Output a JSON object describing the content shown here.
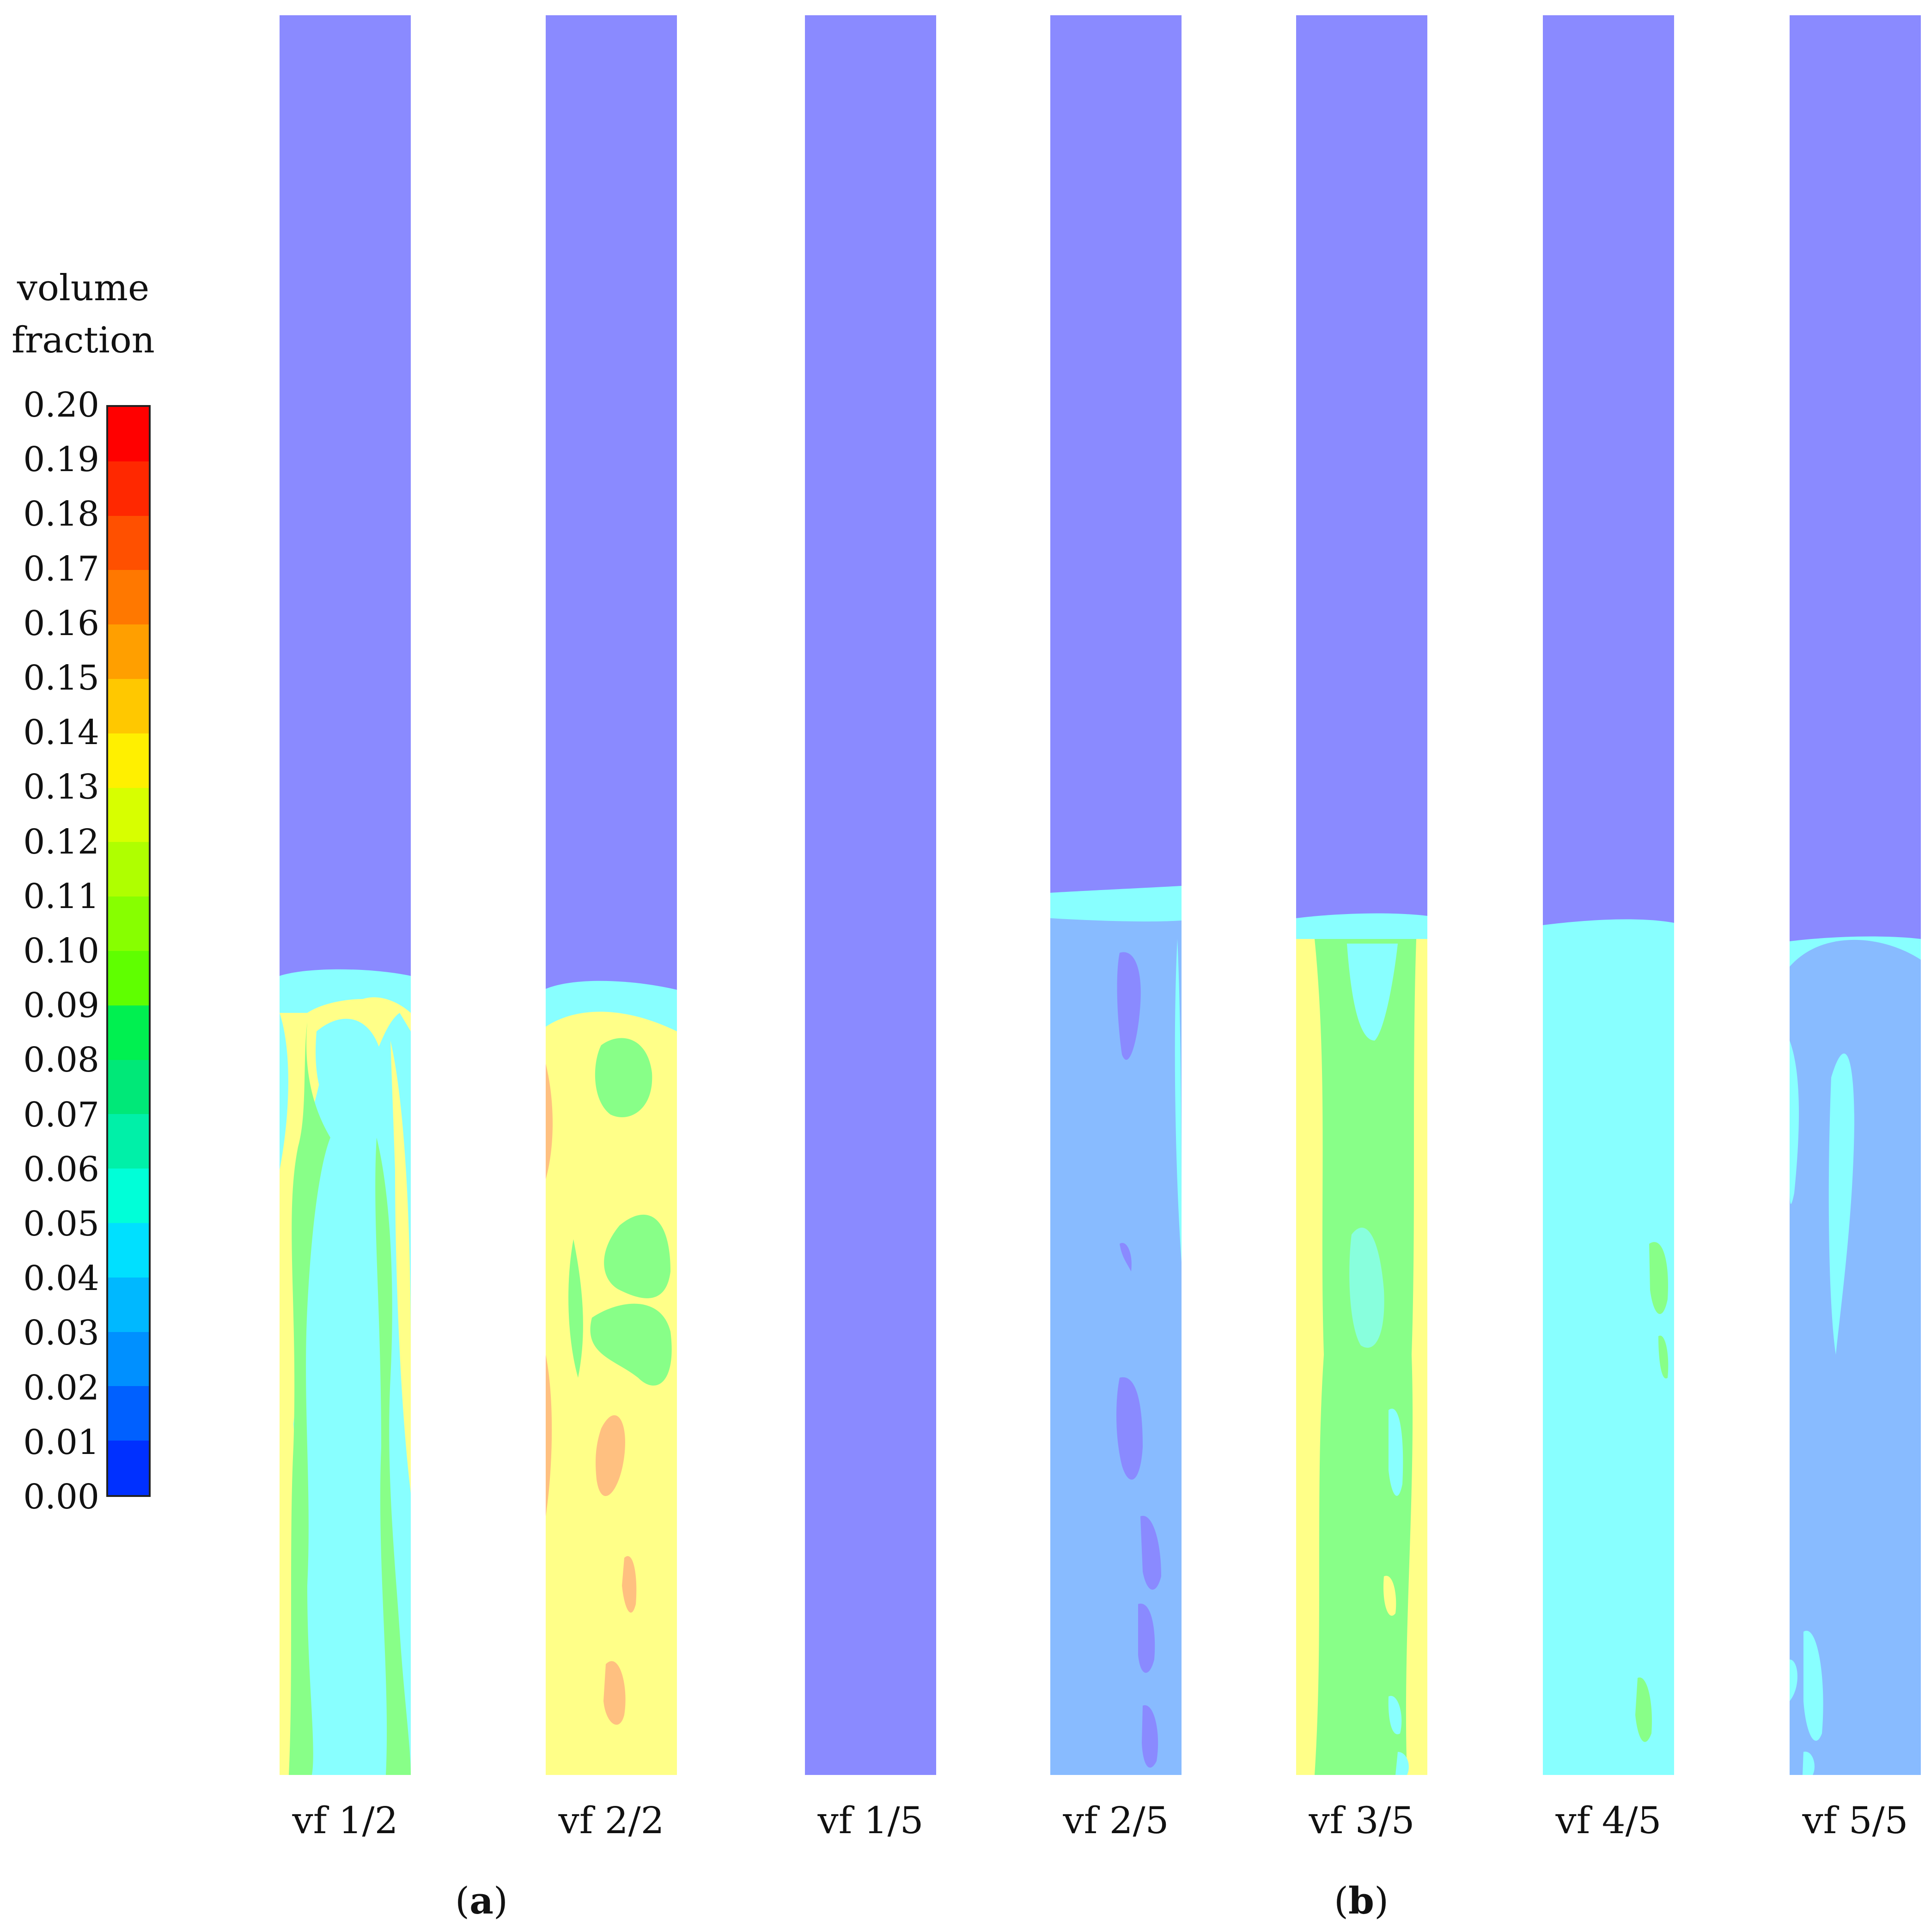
{
  "colorbar": {
    "title_line1": "volume",
    "title_line2": "fraction",
    "ticks": [
      "0.20",
      "0.19",
      "0.18",
      "0.17",
      "0.16",
      "0.15",
      "0.14",
      "0.13",
      "0.12",
      "0.11",
      "0.10",
      "0.09",
      "0.08",
      "0.07",
      "0.06",
      "0.05",
      "0.04",
      "0.03",
      "0.02",
      "0.01",
      "0.00"
    ],
    "colors_top_to_bottom": [
      "#ff0000",
      "#ff2800",
      "#ff5000",
      "#ff7800",
      "#ff9f00",
      "#ffc800",
      "#fff000",
      "#d7ff00",
      "#afff00",
      "#87ff00",
      "#5fff00",
      "#00f050",
      "#00e878",
      "#00f0a8",
      "#00ffd8",
      "#00e0ff",
      "#00b8ff",
      "#0090ff",
      "#0060ff",
      "#0030ff"
    ]
  },
  "columns": [
    {
      "label": "vf 1/2"
    },
    {
      "label": "vf 2/2"
    },
    {
      "label": "vf 1/5"
    },
    {
      "label": "vf 2/5"
    },
    {
      "label": "vf 3/5"
    },
    {
      "label": "vf 4/5"
    },
    {
      "label": "vf 5/5"
    }
  ],
  "panels": [
    {
      "open": "(",
      "letter": "a",
      "close": ")"
    },
    {
      "open": "(",
      "letter": "b",
      "close": ")"
    }
  ],
  "colors": {
    "background_phase": "#8a8aff",
    "cyan": "#88ffff",
    "light_blue": "#88bbff",
    "yellow": "#ffff88",
    "green": "#88ff88",
    "orange": "#ffc080"
  }
}
